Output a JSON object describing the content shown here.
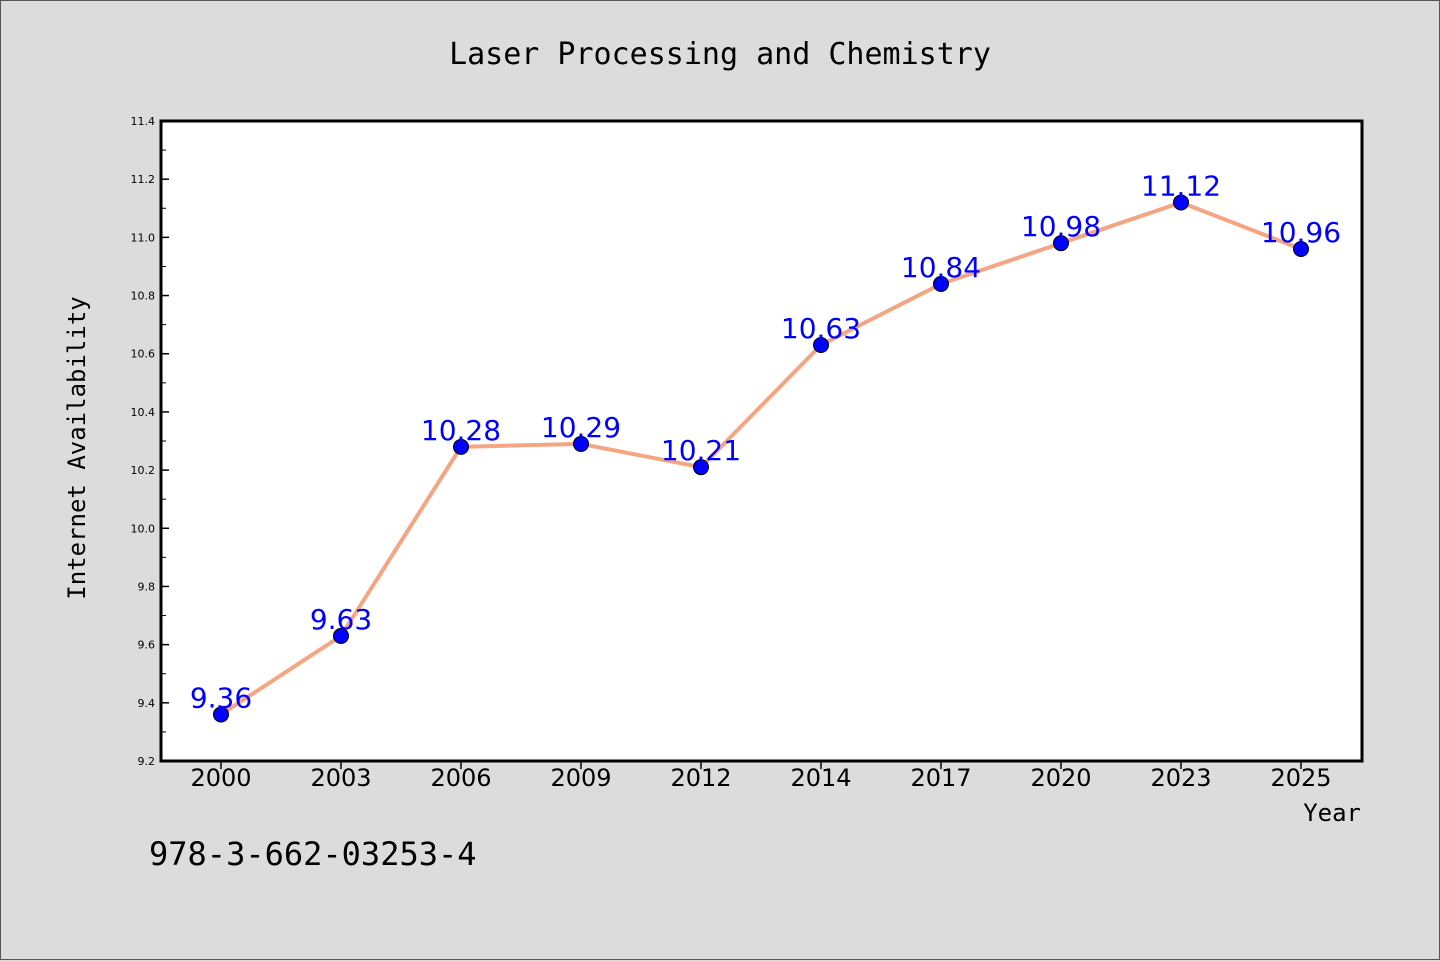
{
  "chart_data": {
    "type": "line",
    "title": "Laser Processing and Chemistry",
    "xlabel": "Year",
    "ylabel": "Internet Availability",
    "categories": [
      "2000",
      "2003",
      "2006",
      "2009",
      "2012",
      "2014",
      "2017",
      "2020",
      "2023",
      "2025"
    ],
    "series": [
      {
        "values": [
          9.36,
          9.63,
          10.28,
          10.29,
          10.21,
          10.63,
          10.84,
          10.98,
          11.12,
          10.96
        ],
        "labels": [
          "9.36",
          "9.63",
          "10.28",
          "10.29",
          "10.21",
          "10.63",
          "10.84",
          "10.98",
          "11.12",
          "10.96"
        ],
        "line_color": "#f4a582",
        "marker_color": "#0000ff"
      }
    ],
    "ylim": [
      9.2,
      11.4
    ],
    "yticks": [
      "9.2",
      "9.4",
      "9.6",
      "9.8",
      "10.0",
      "10.2",
      "10.4",
      "10.6",
      "10.8",
      "11.0",
      "11.2",
      "11.4"
    ],
    "grid": false,
    "background_color": "#dcdcdc",
    "plot_background_color": "#ffffff"
  },
  "footer_text": "978-3-662-03253-4"
}
